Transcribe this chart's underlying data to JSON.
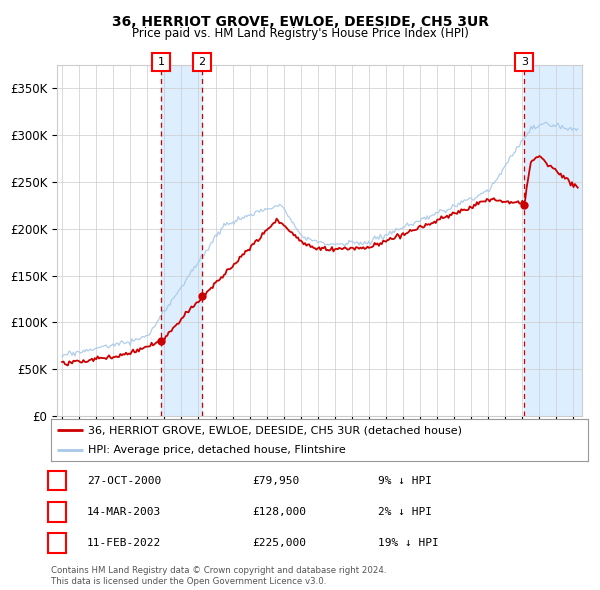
{
  "title1": "36, HERRIOT GROVE, EWLOE, DEESIDE, CH5 3UR",
  "title2": "Price paid vs. HM Land Registry's House Price Index (HPI)",
  "sale_prices": [
    79950,
    128000,
    225000
  ],
  "sale_labels": [
    "1",
    "2",
    "3"
  ],
  "sale_pct": [
    "9% ↓ HPI",
    "2% ↓ HPI",
    "19% ↓ HPI"
  ],
  "sale_date_strs": [
    "27-OCT-2000",
    "14-MAR-2003",
    "11-FEB-2022"
  ],
  "sale_price_strs": [
    "£79,950",
    "£128,000",
    "£225,000"
  ],
  "sale_years": [
    2000.83,
    2003.21,
    2022.12
  ],
  "hpi_line_color": "#a8c8e8",
  "property_line_color": "#cc0000",
  "sale_marker_color": "#cc0000",
  "dashed_line_color": "#cc0000",
  "shade_color": "#ddeeff",
  "grid_color": "#cccccc",
  "background_color": "#ffffff",
  "legend_entry1": "36, HERRIOT GROVE, EWLOE, DEESIDE, CH5 3UR (detached house)",
  "legend_entry2": "HPI: Average price, detached house, Flintshire",
  "footer1": "Contains HM Land Registry data © Crown copyright and database right 2024.",
  "footer2": "This data is licensed under the Open Government Licence v3.0.",
  "yticks": [
    0,
    50000,
    100000,
    150000,
    200000,
    250000,
    300000,
    350000
  ],
  "ylim": [
    0,
    375000
  ],
  "xlim_start": 1994.7,
  "xlim_end": 2025.5
}
